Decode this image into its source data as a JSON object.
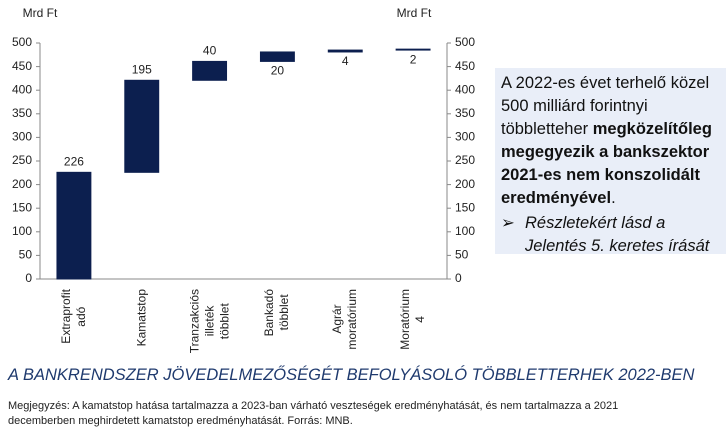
{
  "chart_data": {
    "type": "waterfall",
    "categories": [
      "Extraprofit adó",
      "Kamatstop",
      "Tranzakciós illeték többlet",
      "Bankadó többlet",
      "Agrár moratórium",
      "Moratórium 4"
    ],
    "values": [
      226,
      195,
      40,
      20,
      4,
      2
    ],
    "color": "#0c1f4f",
    "ylim": [
      0,
      500
    ],
    "yticks": [
      0,
      50,
      100,
      150,
      200,
      250,
      300,
      350,
      400,
      450,
      500
    ],
    "y2lim": [
      0,
      500
    ],
    "y2ticks": [
      0,
      50,
      100,
      150,
      200,
      250,
      300,
      350,
      400,
      450,
      500
    ],
    "y_label": "Mrd Ft",
    "y2_label": "Mrd Ft"
  },
  "text_box": {
    "lead": "A 2022-es évet terhelő közel 500 milliárd forintnyi többletteher ",
    "bold": "megközelítőleg megegyezik a bankszektor 2021-es nem konszolidált eredményével",
    "tail": ".",
    "bullet": "Részletekért lásd a Jelentés 5. keretes írását"
  },
  "title": "A BANKRENDSZER JÖVEDELMEZŐSÉGÉT BEFOLYÁSOLÓ TÖBBLETTERHEK 2022-BEN",
  "note": "Megjegyzés: A kamatstop hatása tartalmazza a 2023-ban várható veszteségek eredményhatását, és nem tartalmazza a 2021 decemberben meghirdetett kamatstop eredményhatását. Forrás: MNB."
}
